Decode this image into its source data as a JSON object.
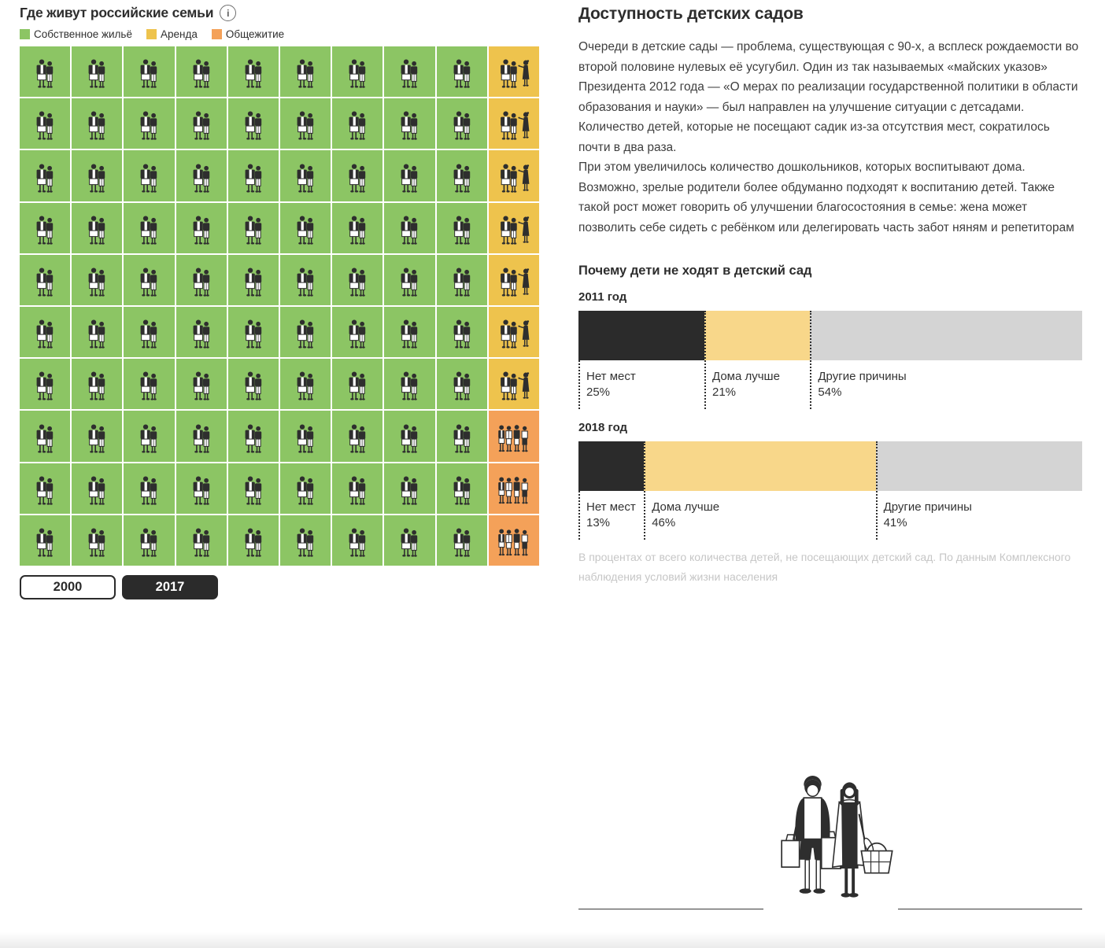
{
  "left_panel": {
    "title": "Где живут российские семьи",
    "info_icon": "i",
    "legend": [
      {
        "label": "Собственное жильё",
        "key": "own",
        "color": "#8cc564"
      },
      {
        "label": "Аренда",
        "key": "rent",
        "color": "#eec34d"
      },
      {
        "label": "Общежитие",
        "key": "dorm",
        "color": "#f4a159"
      }
    ],
    "buttons": [
      {
        "label": "2000",
        "active": false
      },
      {
        "label": "2017",
        "active": true
      }
    ]
  },
  "right_panel": {
    "title": "Доступность детских садов",
    "paragraphs": [
      "Очереди в детские сады — проблема, существующая с 90-х, а всплеск рождаемости во второй половине нулевых её усугубил. Один из так называемых «майских указов» Президента 2012 года — «О мерах по реализации государственной политики в области образования и науки» — был направлен на улучшение ситуации с детсадами. Количество детей, которые не посещают садик из-за отсутствия мест, сократилось почти в два раза.",
      "При этом увеличилось количество дошкольников, которых воспитывают дома. Возможно, зрелые родители более обдуманно подходят к воспитанию детей. Также такой рост может говорить об улучшении благосостояния в семье: жена может позволить себе сидеть с ребёнком или делегировать часть забот няням и репетиторам"
    ],
    "section_title": "Почему дети не ходят в детский сад",
    "footnote": "В процентах от всего количества детей, не посещающих детский сад. По данным Комплексного наблюдения условий жизни населения"
  },
  "chart_data": [
    {
      "type": "waffle",
      "title": "Где живут российские семьи",
      "selected_year": "2017",
      "rows": 10,
      "cols": 10,
      "categories": [
        "Собственное жильё",
        "Аренда",
        "Общежитие"
      ],
      "values_percent": [
        90,
        7,
        3
      ],
      "cell_map": {
        "G": "own",
        "Y": "rent",
        "O": "dorm"
      },
      "colors": {
        "own": "#8cc564",
        "rent": "#eec34d",
        "dorm": "#f4a159"
      },
      "grid_rows": [
        "GGGGGGGGGY",
        "GGGGGGGGGY",
        "GGGGGGGGGY",
        "GGGGGGGGGY",
        "GGGGGGGGGY",
        "GGGGGGGGGY",
        "GGGGGGGGGY",
        "GGGGGGGGGO",
        "GGGGGGGGGO",
        "GGGGGGGGGO"
      ]
    },
    {
      "type": "bar",
      "subtype": "horizontal-stacked",
      "title": "Почему дети не ходят в детский сад",
      "unit": "%",
      "xlim": [
        0,
        100
      ],
      "charts": [
        {
          "year_label": "2011 год",
          "segments": [
            {
              "label": "Нет мест",
              "value": 25,
              "color": "#2b2b2b"
            },
            {
              "label": "Дома лучше",
              "value": 21,
              "color": "#f8d78a"
            },
            {
              "label": "Другие причины",
              "value": 54,
              "color": "#d4d4d4"
            }
          ]
        },
        {
          "year_label": "2018 год",
          "segments": [
            {
              "label": "Нет мест",
              "value": 13,
              "color": "#2b2b2b"
            },
            {
              "label": "Дома лучше",
              "value": 46,
              "color": "#f8d78a"
            },
            {
              "label": "Другие причины",
              "value": 41,
              "color": "#d4d4d4"
            }
          ]
        }
      ]
    }
  ]
}
